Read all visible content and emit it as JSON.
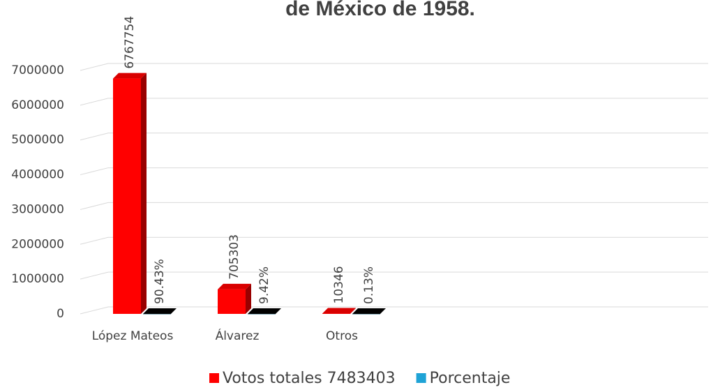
{
  "chart_data": {
    "type": "bar3d",
    "title": "de México de 1958.",
    "categories": [
      "López Mateos",
      "Álvarez",
      "Otros",
      null,
      null,
      null
    ],
    "series": [
      {
        "name": "Votos totales 7483403",
        "color": "#ff0000",
        "values": [
          6767754,
          705303,
          10346,
          null,
          null,
          null
        ]
      },
      {
        "name": "Porcentaje",
        "color": "#1fa3d6",
        "values": [
          90.43,
          9.42,
          0.13,
          null,
          null,
          null
        ],
        "value_labels": [
          "90.43%",
          "9.42%",
          "0.13%",
          null,
          null,
          null
        ]
      }
    ],
    "ylim": [
      0,
      7000000
    ],
    "yticks": [
      0,
      1000000,
      2000000,
      3000000,
      4000000,
      5000000,
      6000000,
      7000000
    ],
    "grid": true,
    "legend": "bottom"
  }
}
